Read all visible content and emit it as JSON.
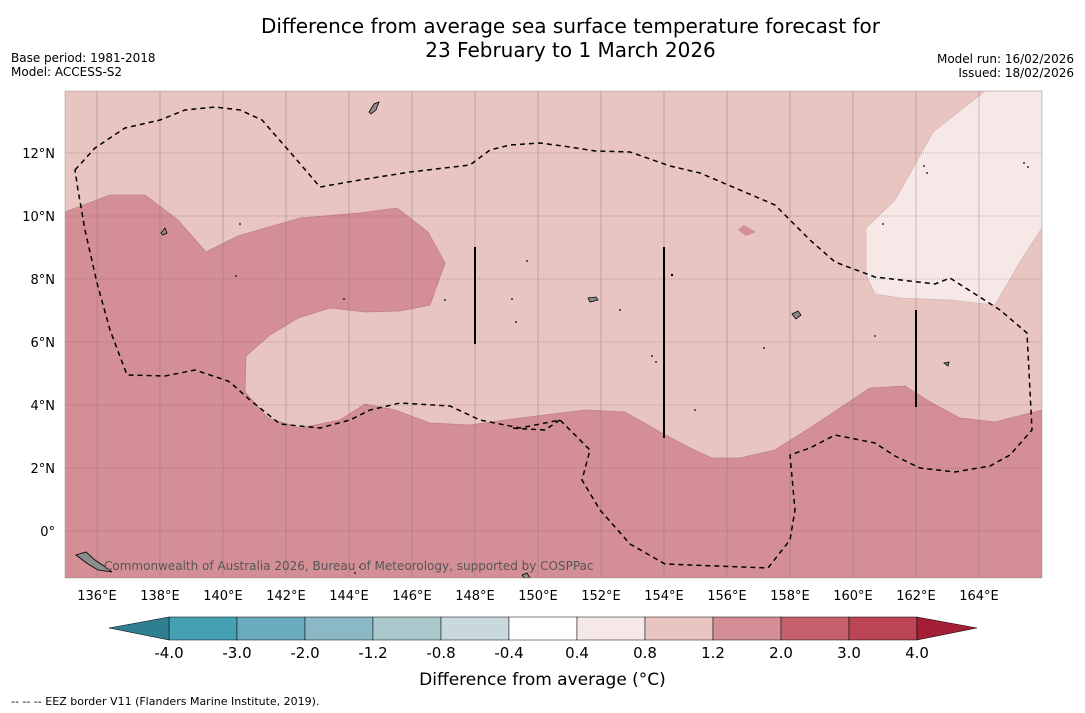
{
  "title": {
    "line1": "Difference from average sea surface temperature forecast for",
    "line2": "23 February to 1 March 2026"
  },
  "meta": {
    "base_period": "Base period: 1981-2018",
    "model": "Model: ACCESS-S2",
    "model_run": "Model run: 16/02/2026",
    "issued": "Issued: 18/02/2026"
  },
  "map": {
    "lon_labels": [
      "136°E",
      "138°E",
      "140°E",
      "142°E",
      "144°E",
      "146°E",
      "148°E",
      "150°E",
      "152°E",
      "154°E",
      "156°E",
      "158°E",
      "160°E",
      "162°E",
      "164°E"
    ],
    "lat_labels": [
      "12°N",
      "10°N",
      "8°N",
      "6°N",
      "4°N",
      "2°N",
      "0°"
    ],
    "lon_range": [
      135,
      166
    ],
    "lat_range": [
      -1.5,
      14
    ],
    "watermark": "Commonwealth of Australia 2026, Bureau of Meteorology, supported by COSPPac"
  },
  "colorbar": {
    "title": "Difference from average (°C)",
    "labels": [
      "-4.0",
      "-3.0",
      "-2.0",
      "-1.2",
      "-0.8",
      "-0.4",
      "0.4",
      "0.8",
      "1.2",
      "2.0",
      "3.0",
      "4.0"
    ],
    "colors": {
      "under": "#2e7f8f",
      "bins": [
        "#45a0b3",
        "#6aabbe",
        "#8ab9c5",
        "#aac9cd",
        "#c9d8dc",
        "#ffffff",
        "#f5e8e7",
        "#e8c5c1",
        "#d48f96",
        "#c5606c",
        "#bb4554"
      ],
      "over": "#a41e38"
    }
  },
  "footnote": "-- -- -- EEZ border V11 (Flanders Marine Institute, 2019)."
}
